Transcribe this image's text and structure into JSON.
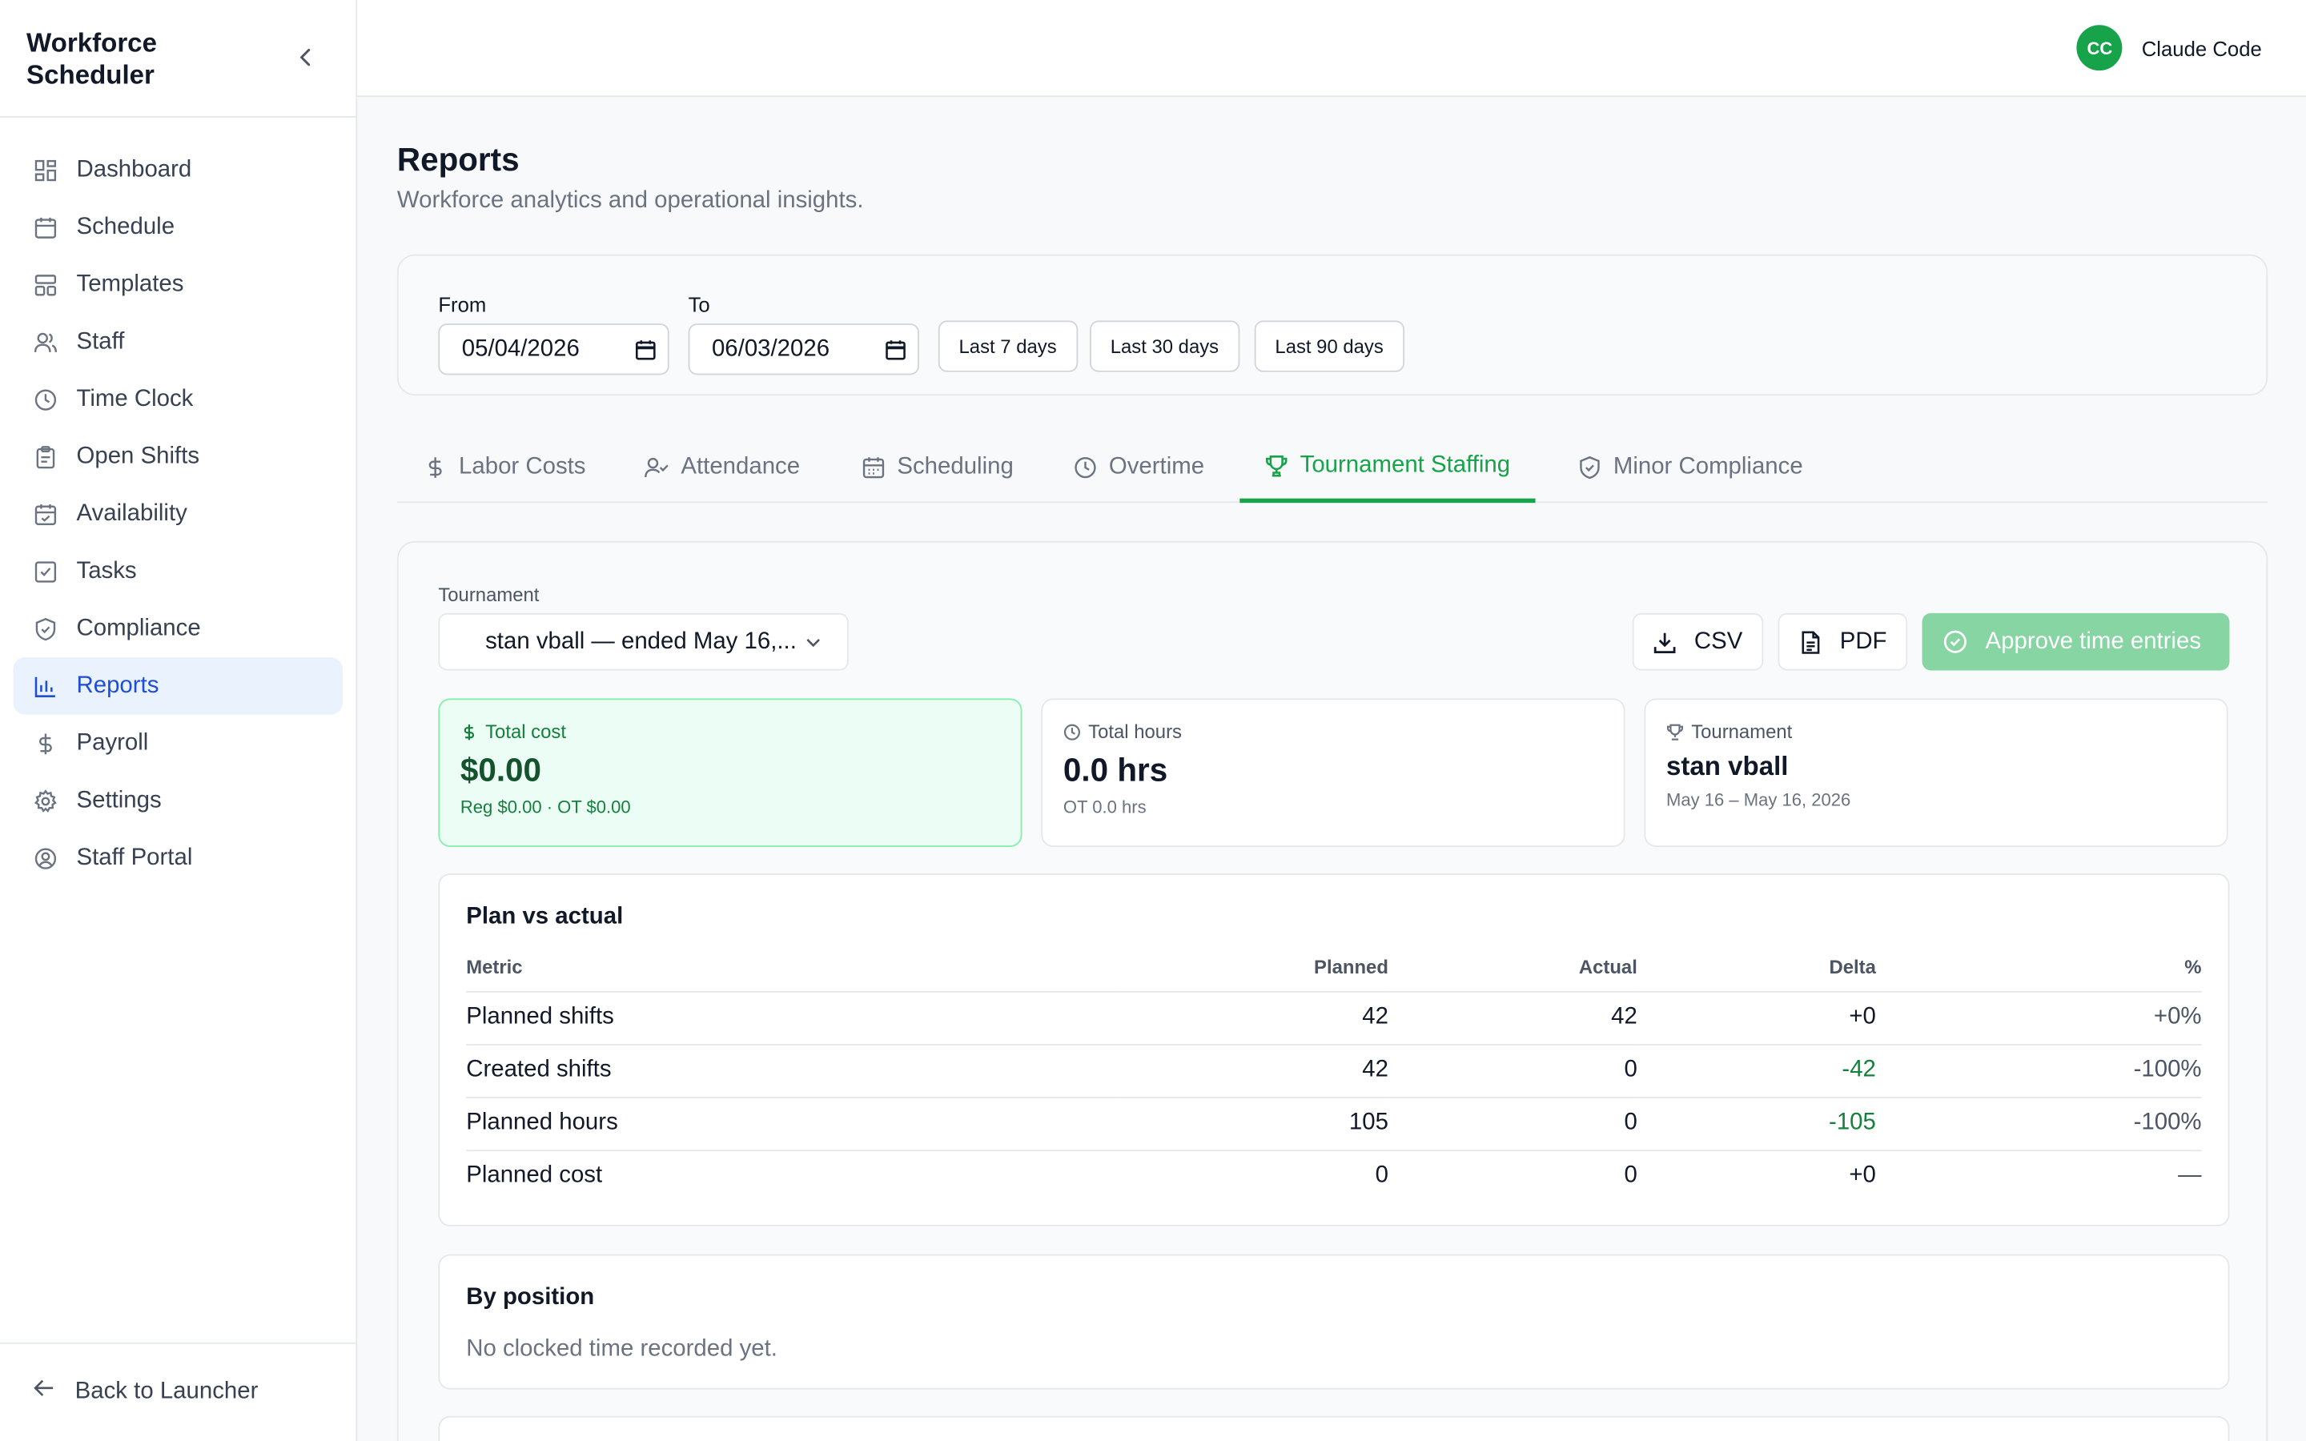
{
  "app": {
    "title": "Workforce Scheduler"
  },
  "sidebar": {
    "items": [
      {
        "label": "Dashboard",
        "icon": "dashboard-icon"
      },
      {
        "label": "Schedule",
        "icon": "calendar-icon"
      },
      {
        "label": "Templates",
        "icon": "templates-icon"
      },
      {
        "label": "Staff",
        "icon": "users-icon"
      },
      {
        "label": "Time Clock",
        "icon": "clock-icon"
      },
      {
        "label": "Open Shifts",
        "icon": "clipboard-icon"
      },
      {
        "label": "Availability",
        "icon": "calendar-check-icon"
      },
      {
        "label": "Tasks",
        "icon": "checkbox-icon"
      },
      {
        "label": "Compliance",
        "icon": "shield-icon"
      },
      {
        "label": "Reports",
        "icon": "bar-chart-icon",
        "active": true
      },
      {
        "label": "Payroll",
        "icon": "dollar-icon"
      },
      {
        "label": "Settings",
        "icon": "gear-icon"
      },
      {
        "label": "Staff Portal",
        "icon": "user-circle-icon"
      }
    ],
    "back_label": "Back to Launcher"
  },
  "header": {
    "user_initials": "CC",
    "user_name": "Claude Code"
  },
  "page": {
    "title": "Reports",
    "subtitle": "Workforce analytics and operational insights."
  },
  "filters": {
    "from_label": "From",
    "from_value": "05/04/2026",
    "to_label": "To",
    "to_value": "06/03/2026",
    "presets": [
      "Last 7 days",
      "Last 30 days",
      "Last 90 days"
    ]
  },
  "tabs": [
    {
      "label": "Labor Costs",
      "icon": "dollar-icon"
    },
    {
      "label": "Attendance",
      "icon": "user-check-icon"
    },
    {
      "label": "Scheduling",
      "icon": "calendar-icon"
    },
    {
      "label": "Overtime",
      "icon": "clock-icon"
    },
    {
      "label": "Tournament Staffing",
      "icon": "trophy-icon",
      "active": true
    },
    {
      "label": "Minor Compliance",
      "icon": "shield-check-icon"
    }
  ],
  "tournament": {
    "select_label": "Tournament",
    "selected": "stan vball — ended May 16,...",
    "csv_label": "CSV",
    "pdf_label": "PDF",
    "approve_label": "Approve time entries"
  },
  "stats": {
    "total_cost": {
      "label": "Total cost",
      "value": "$0.00",
      "sub": "Reg $0.00 · OT $0.00"
    },
    "total_hours": {
      "label": "Total hours",
      "value": "0.0 hrs",
      "sub": "OT 0.0 hrs"
    },
    "tournament": {
      "label": "Tournament",
      "value": "stan vball",
      "sub": "May 16 – May 16, 2026"
    }
  },
  "plan_vs_actual": {
    "title": "Plan vs actual",
    "columns": [
      "Metric",
      "Planned",
      "Actual",
      "Delta",
      "%"
    ],
    "rows": [
      [
        "Planned shifts",
        "42",
        "42",
        "+0",
        "+0%"
      ],
      [
        "Created shifts",
        "42",
        "0",
        "-42",
        "-100%"
      ],
      [
        "Planned hours",
        "105",
        "0",
        "-105",
        "-100%"
      ],
      [
        "Planned cost",
        "0",
        "0",
        "+0",
        "—"
      ]
    ]
  },
  "by_position": {
    "title": "By position",
    "empty": "No clocked time recorded yet."
  },
  "colors": {
    "accent": "#16a34a",
    "active_nav": "#1d4ed8",
    "active_nav_bg": "#eaf2fe"
  }
}
